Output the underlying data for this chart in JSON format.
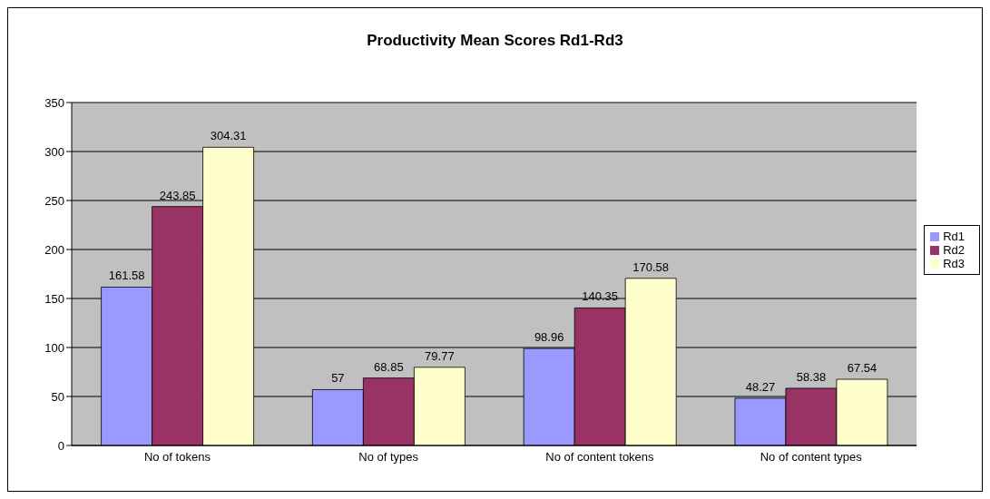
{
  "chart_data": {
    "type": "bar",
    "title": "Productivity Mean Scores Rd1-Rd3",
    "categories": [
      "No of tokens",
      "No of types",
      "No of content tokens",
      "No of content types"
    ],
    "series": [
      {
        "name": "Rd1",
        "color": "#9999ff",
        "values": [
          161.58,
          57,
          98.96,
          48.27
        ]
      },
      {
        "name": "Rd2",
        "color": "#993366",
        "values": [
          243.85,
          68.85,
          140.35,
          58.38
        ]
      },
      {
        "name": "Rd3",
        "color": "#ffffcc",
        "values": [
          304.31,
          79.77,
          170.58,
          67.54
        ]
      }
    ],
    "ylim": [
      0,
      350
    ],
    "yticks": [
      0,
      50,
      100,
      150,
      200,
      250,
      300,
      350
    ],
    "grid": "y",
    "legend": "right",
    "data_labels": true
  }
}
